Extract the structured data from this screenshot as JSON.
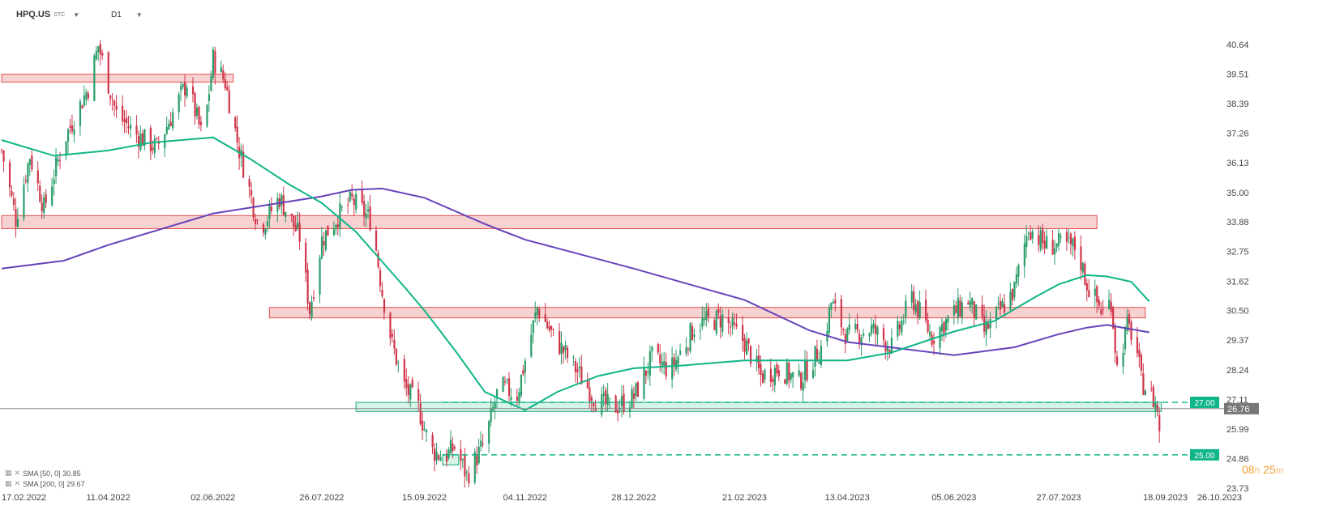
{
  "header": {
    "symbol": "HPQ.US",
    "instrument_type": "STC",
    "timeframe": "D1"
  },
  "indicators": [
    {
      "label": "SMA [50, 0] 30.85",
      "color": "#10b588"
    },
    {
      "label": "SMA [200, 0] 29.67",
      "color": "#6744bb"
    }
  ],
  "countdown": {
    "hours": "08",
    "h_unit": "h",
    "minutes": "25",
    "m_unit": "m"
  },
  "chart_data": {
    "type": "candlestick",
    "y_ticks": [
      "40.64",
      "39.51",
      "38.39",
      "37.26",
      "36.13",
      "35.00",
      "33.88",
      "32.75",
      "31.62",
      "30.50",
      "29.37",
      "28.24",
      "27.11",
      "25.99",
      "24.86",
      "23.73"
    ],
    "x_ticks": [
      "17.02.2022",
      "11.04.2022",
      "02.06.2022",
      "26.07.2022",
      "15.09.2022",
      "04.11.2022",
      "28.12.2022",
      "21.02.2023",
      "13.04.2023",
      "05.06.2023",
      "27.07.2023",
      "18.09.2023",
      "26.10.2023"
    ],
    "ylim": [
      23.73,
      40.64
    ],
    "last_price": {
      "value": "26.76",
      "color": "#777777"
    },
    "levels": [
      {
        "value": "27.00",
        "color": "#10b588",
        "style": "dashed"
      },
      {
        "value": "25.00",
        "color": "#10b588",
        "style": "dashed"
      }
    ],
    "zones": [
      {
        "kind": "resistance",
        "low": 39.21,
        "high": 39.51,
        "from": "17.02.2022",
        "to": "12.06.2022",
        "color": "#ef9a9a"
      },
      {
        "kind": "resistance",
        "low": 33.62,
        "high": 34.12,
        "from": "17.02.2022",
        "to": "15.08.2023",
        "color": "#ef9a9a"
      },
      {
        "kind": "resistance",
        "low": 30.22,
        "high": 30.62,
        "from": "30.06.2022",
        "to": "08.09.2023",
        "color": "#ef9a9a"
      },
      {
        "kind": "support",
        "low": 26.65,
        "high": 27.0,
        "from": "12.08.2022",
        "to": "16.09.2023",
        "color": "#a5e6cc"
      },
      {
        "kind": "support",
        "low": 24.62,
        "high": 25.0,
        "from": "24.09.2022",
        "to": "02.10.2022",
        "color": "#a5e6cc"
      }
    ],
    "sma50": [
      [
        "17.02.2022",
        37.0
      ],
      [
        "15.03.2022",
        36.4
      ],
      [
        "11.04.2022",
        36.6
      ],
      [
        "02.05.2022",
        36.9
      ],
      [
        "02.06.2022",
        37.1
      ],
      [
        "20.06.2022",
        36.3
      ],
      [
        "10.07.2022",
        35.3
      ],
      [
        "26.07.2022",
        34.6
      ],
      [
        "12.08.2022",
        33.5
      ],
      [
        "20.08.2022",
        32.8
      ],
      [
        "05.09.2022",
        31.4
      ],
      [
        "15.09.2022",
        30.5
      ],
      [
        "01.10.2022",
        28.9
      ],
      [
        "15.10.2022",
        27.4
      ],
      [
        "04.11.2022",
        26.7
      ],
      [
        "20.11.2022",
        27.4
      ],
      [
        "10.12.2022",
        28.0
      ],
      [
        "28.12.2022",
        28.3
      ],
      [
        "20.01.2023",
        28.4
      ],
      [
        "21.02.2023",
        28.6
      ],
      [
        "15.03.2023",
        28.6
      ],
      [
        "13.04.2023",
        28.6
      ],
      [
        "05.05.2023",
        28.9
      ],
      [
        "05.06.2023",
        29.7
      ],
      [
        "25.06.2023",
        30.1
      ],
      [
        "15.07.2023",
        31.0
      ],
      [
        "27.07.2023",
        31.5
      ],
      [
        "10.08.2023",
        31.85
      ],
      [
        "20.08.2023",
        31.8
      ],
      [
        "01.09.2023",
        31.6
      ],
      [
        "10.09.2023",
        30.85
      ]
    ],
    "sma200": [
      [
        "17.02.2022",
        32.1
      ],
      [
        "20.03.2022",
        32.4
      ],
      [
        "11.04.2022",
        33.0
      ],
      [
        "02.06.2022",
        34.2
      ],
      [
        "26.07.2022",
        34.85
      ],
      [
        "10.08.2022",
        35.1
      ],
      [
        "25.08.2022",
        35.15
      ],
      [
        "15.09.2022",
        34.8
      ],
      [
        "15.10.2022",
        33.8
      ],
      [
        "04.11.2022",
        33.2
      ],
      [
        "28.12.2022",
        32.1
      ],
      [
        "21.02.2023",
        30.9
      ],
      [
        "25.03.2023",
        29.75
      ],
      [
        "13.04.2023",
        29.3
      ],
      [
        "15.05.2023",
        29.0
      ],
      [
        "05.06.2023",
        28.8
      ],
      [
        "05.07.2023",
        29.1
      ],
      [
        "27.07.2023",
        29.6
      ],
      [
        "10.08.2023",
        29.85
      ],
      [
        "20.08.2023",
        29.95
      ],
      [
        "10.09.2023",
        29.67
      ]
    ],
    "ohlc_waypoints": [
      [
        "17.02.2022",
        36.6
      ],
      [
        "24.02.2022",
        34.0
      ],
      [
        "03.03.2022",
        36.4
      ],
      [
        "10.03.2022",
        34.4
      ],
      [
        "20.03.2022",
        37.0
      ],
      [
        "01.04.2022",
        39.0
      ],
      [
        "06.04.2022",
        40.6
      ],
      [
        "15.04.2022",
        38.0
      ],
      [
        "25.04.2022",
        37.2
      ],
      [
        "05.05.2022",
        36.7
      ],
      [
        "20.05.2022",
        39.2
      ],
      [
        "28.05.2022",
        37.0
      ],
      [
        "02.06.2022",
        40.1
      ],
      [
        "08.06.2022",
        39.2
      ],
      [
        "15.06.2022",
        36.6
      ],
      [
        "25.06.2022",
        33.6
      ],
      [
        "05.07.2022",
        34.8
      ],
      [
        "15.07.2022",
        33.3
      ],
      [
        "20.07.2022",
        30.5
      ],
      [
        "26.07.2022",
        33.2
      ],
      [
        "03.08.2022",
        34.1
      ],
      [
        "10.08.2022",
        34.7
      ],
      [
        "20.08.2022",
        33.9
      ],
      [
        "25.08.2022",
        31.2
      ],
      [
        "30.08.2022",
        29.2
      ],
      [
        "05.09.2022",
        27.6
      ],
      [
        "12.09.2022",
        26.8
      ],
      [
        "18.09.2022",
        25.2
      ],
      [
        "25.09.2022",
        24.9
      ],
      [
        "30.09.2022",
        25.3
      ],
      [
        "06.10.2022",
        24.2
      ],
      [
        "15.10.2022",
        25.5
      ],
      [
        "22.10.2022",
        27.6
      ],
      [
        "31.10.2022",
        27.3
      ],
      [
        "04.11.2022",
        28.6
      ],
      [
        "10.11.2022",
        30.6
      ],
      [
        "18.11.2022",
        29.5
      ],
      [
        "28.11.2022",
        28.4
      ],
      [
        "10.12.2022",
        27.0
      ],
      [
        "18.12.2022",
        26.8
      ],
      [
        "28.12.2022",
        27.2
      ],
      [
        "06.01.2023",
        28.7
      ],
      [
        "15.01.2023",
        28.2
      ],
      [
        "28.01.2023",
        30.0
      ],
      [
        "10.02.2023",
        30.2
      ],
      [
        "21.02.2023",
        29.3
      ],
      [
        "01.03.2023",
        28.0
      ],
      [
        "10.03.2023",
        28.3
      ],
      [
        "20.03.2023",
        27.8
      ],
      [
        "01.04.2023",
        29.2
      ],
      [
        "05.04.2023",
        30.8
      ],
      [
        "13.04.2023",
        29.5
      ],
      [
        "25.04.2023",
        29.8
      ],
      [
        "05.05.2023",
        29.1
      ],
      [
        "15.05.2023",
        31.0
      ],
      [
        "25.05.2023",
        29.5
      ],
      [
        "05.06.2023",
        30.4
      ],
      [
        "12.06.2023",
        30.9
      ],
      [
        "20.06.2023",
        29.7
      ],
      [
        "28.06.2023",
        30.5
      ],
      [
        "05.07.2023",
        31.3
      ],
      [
        "12.07.2023",
        33.7
      ],
      [
        "20.07.2023",
        33.0
      ],
      [
        "27.07.2023",
        33.0
      ],
      [
        "05.08.2023",
        32.9
      ],
      [
        "10.08.2023",
        31.5
      ],
      [
        "18.08.2023",
        30.4
      ],
      [
        "22.08.2023",
        30.9
      ],
      [
        "25.08.2023",
        28.3
      ],
      [
        "30.08.2023",
        29.9
      ],
      [
        "03.09.2023",
        29.4
      ],
      [
        "06.09.2023",
        27.8
      ],
      [
        "10.09.2023",
        27.4
      ],
      [
        "14.09.2023",
        26.76
      ],
      [
        "15.09.2023",
        25.9
      ]
    ]
  }
}
